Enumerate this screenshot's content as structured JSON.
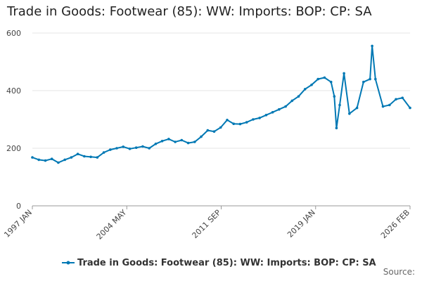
{
  "chart_data": {
    "type": "line",
    "title": "Trade in Goods: Footwear (85): WW: Imports: BOP: CP: SA",
    "xlabel": "",
    "ylabel": "",
    "x_ticks": [
      "1997 JAN",
      "2004 MAY",
      "2011 SEP",
      "2019 JAN",
      "2026 FEB"
    ],
    "y_ticks": [
      0,
      200,
      400,
      600
    ],
    "ylim": [
      0,
      600
    ],
    "grid": true,
    "legend": "bottom",
    "color": "#0078b4",
    "series": [
      {
        "name": "Trade in Goods: Footwear (85): WW: Imports: BOP: CP: SA",
        "points": [
          [
            "1997-01",
            168
          ],
          [
            "1997-07",
            160
          ],
          [
            "1998-01",
            157
          ],
          [
            "1998-07",
            163
          ],
          [
            "1999-01",
            150
          ],
          [
            "1999-07",
            160
          ],
          [
            "2000-01",
            168
          ],
          [
            "2000-07",
            180
          ],
          [
            "2001-01",
            172
          ],
          [
            "2001-07",
            170
          ],
          [
            "2002-01",
            168
          ],
          [
            "2002-07",
            185
          ],
          [
            "2003-01",
            195
          ],
          [
            "2003-07",
            200
          ],
          [
            "2004-01",
            205
          ],
          [
            "2004-07",
            198
          ],
          [
            "2005-01",
            202
          ],
          [
            "2005-07",
            206
          ],
          [
            "2006-01",
            200
          ],
          [
            "2006-07",
            215
          ],
          [
            "2007-01",
            225
          ],
          [
            "2007-07",
            232
          ],
          [
            "2008-01",
            222
          ],
          [
            "2008-07",
            228
          ],
          [
            "2009-01",
            218
          ],
          [
            "2009-07",
            222
          ],
          [
            "2010-01",
            240
          ],
          [
            "2010-07",
            262
          ],
          [
            "2011-01",
            258
          ],
          [
            "2011-07",
            272
          ],
          [
            "2012-01",
            298
          ],
          [
            "2012-07",
            285
          ],
          [
            "2013-01",
            284
          ],
          [
            "2013-07",
            290
          ],
          [
            "2014-01",
            300
          ],
          [
            "2014-07",
            305
          ],
          [
            "2015-01",
            315
          ],
          [
            "2015-07",
            325
          ],
          [
            "2016-01",
            335
          ],
          [
            "2016-07",
            345
          ],
          [
            "2017-01",
            365
          ],
          [
            "2017-07",
            380
          ],
          [
            "2018-01",
            405
          ],
          [
            "2018-07",
            420
          ],
          [
            "2019-01",
            440
          ],
          [
            "2019-07",
            445
          ],
          [
            "2020-01",
            430
          ],
          [
            "2020-04",
            380
          ],
          [
            "2020-06",
            270
          ],
          [
            "2020-09",
            350
          ],
          [
            "2021-01",
            460
          ],
          [
            "2021-06",
            320
          ],
          [
            "2022-01",
            340
          ],
          [
            "2022-07",
            430
          ],
          [
            "2023-01",
            440
          ],
          [
            "2023-03",
            555
          ],
          [
            "2023-06",
            440
          ],
          [
            "2024-01",
            345
          ],
          [
            "2024-07",
            350
          ],
          [
            "2025-01",
            370
          ],
          [
            "2025-07",
            375
          ],
          [
            "2026-02",
            340
          ]
        ]
      }
    ]
  },
  "source_label": "Source:"
}
